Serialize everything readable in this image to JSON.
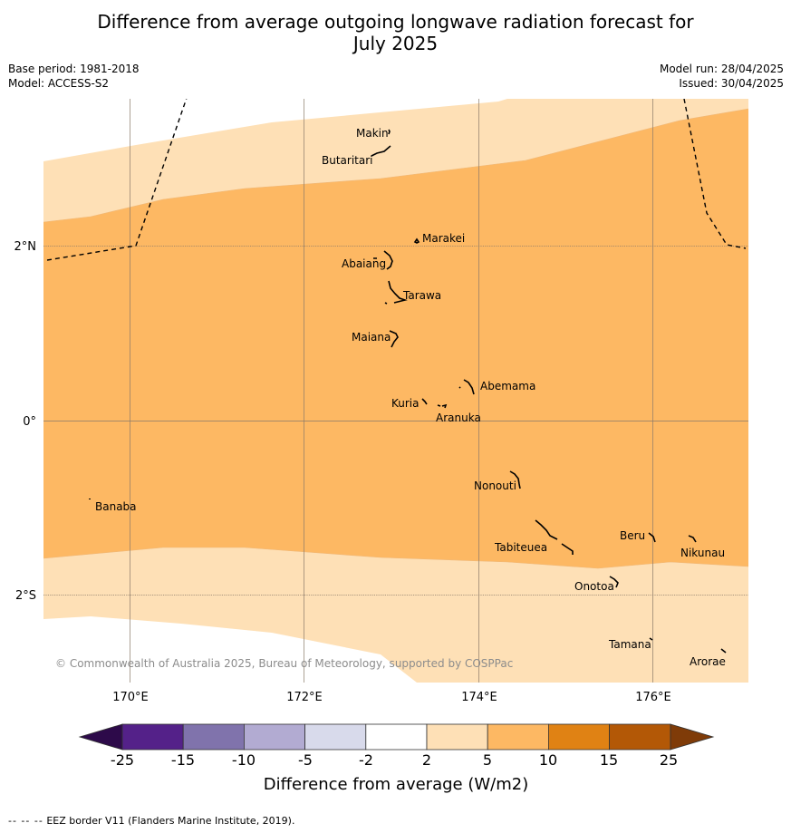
{
  "title_line1": "Difference from average outgoing longwave radiation forecast for",
  "title_line2": "July 2025",
  "base_period": "Base period: 1981-2018",
  "model": "Model: ACCESS-S2",
  "model_run": "Model run: 28/04/2025",
  "issued": "Issued: 30/04/2025",
  "copyright": "© Commonwealth of Australia 2025, Bureau of Meteorology, supported by COSPPac",
  "footer_dash": "-- -- --",
  "footer_text": "EEZ border V11 (Flanders Marine Institute, 2019).",
  "map": {
    "lat_labels": [
      "2°N",
      "0°",
      "2°S"
    ],
    "lon_labels": [
      "170°E",
      "172°E",
      "174°E",
      "176°E"
    ],
    "places": [
      "Makin",
      "Butaritari",
      "Marakei",
      "Abaiang",
      "Tarawa",
      "Maiana",
      "Abemama",
      "Kuria",
      "Aranuka",
      "Nonouti",
      "Banaba",
      "Tabiteuea",
      "Beru",
      "Nikunau",
      "Onotoa",
      "Tamana",
      "Arorae"
    ]
  },
  "colorbar": {
    "label": "Difference from average (W/m2)",
    "ticks": [
      "-25",
      "-15",
      "-10",
      "-5",
      "-2",
      "2",
      "5",
      "10",
      "15",
      "25"
    ],
    "colors": {
      "below_-25": "#2d0a4a",
      "-25_-15": "#542189",
      "-15_-10": "#8073ac",
      "-10_-5": "#b2abd2",
      "-5_-2": "#d8daeb",
      "-2_2": "#ffffff",
      "2_5": "#fee0b6",
      "5_10": "#fdb863",
      "10_15": "#e08214",
      "15_25": "#b35806",
      "above_25": "#7f3b08"
    }
  }
}
